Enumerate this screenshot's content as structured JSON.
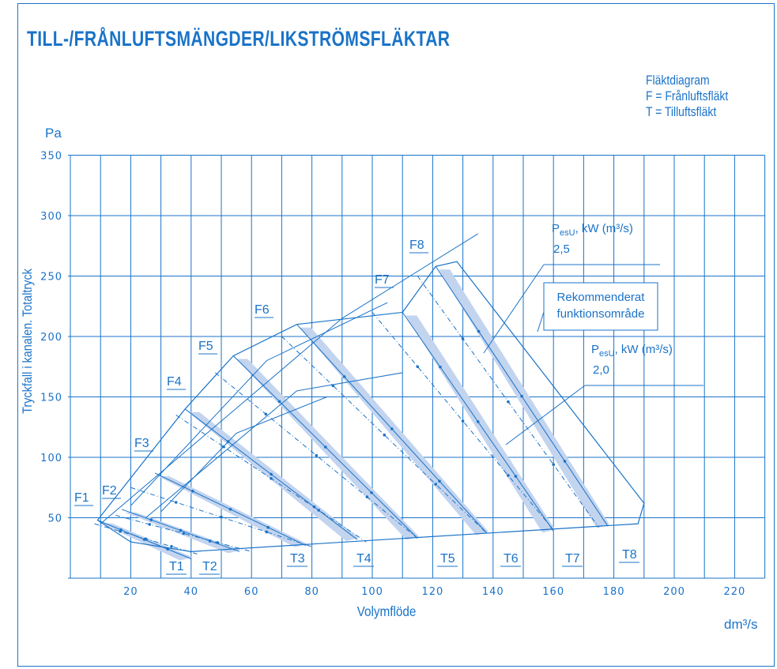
{
  "page": {
    "title": "TILL-/FRÅNLUFTSMÄNGDER/LIKSTRÖMSFLÄKTAR",
    "legend": [
      "Fläktdiagram",
      "F = Frånluftsfläkt",
      "T = Tilluftsfläkt"
    ]
  },
  "chart_data": {
    "type": "line",
    "title": "TILL-/FRÅNLUFTSMÄNGDER/LIKSTRÖMSFLÄKTAR",
    "xlabel": "Volymflöde",
    "xunit": "dm³/s",
    "ylabel": "Tryckfall i kanalen. Totaltryck",
    "yunit": "Pa",
    "xlim": [
      0,
      230
    ],
    "ylim": [
      0,
      350
    ],
    "x_ticks": [
      20,
      40,
      60,
      80,
      100,
      120,
      140,
      160,
      180,
      200,
      220
    ],
    "y_ticks": [
      50,
      100,
      150,
      200,
      250,
      300,
      350
    ],
    "grid": true,
    "colors": {
      "primary": "#1a73c8",
      "band": "#c3d4ef"
    },
    "series": [
      {
        "name": "F1",
        "values": [
          [
            9,
            48
          ],
          [
            40,
            16
          ]
        ]
      },
      {
        "name": "F2",
        "values": [
          [
            17,
            57
          ],
          [
            56,
            22
          ]
        ]
      },
      {
        "name": "F3",
        "values": [
          [
            28,
            87
          ],
          [
            78,
            27
          ]
        ]
      },
      {
        "name": "F4",
        "values": [
          [
            38,
            140
          ],
          [
            95,
            32
          ]
        ]
      },
      {
        "name": "F5",
        "values": [
          [
            54,
            184
          ],
          [
            115,
            33
          ]
        ]
      },
      {
        "name": "F6",
        "values": [
          [
            75,
            210
          ],
          [
            138,
            37
          ]
        ]
      },
      {
        "name": "F7",
        "values": [
          [
            110,
            220
          ],
          [
            160,
            39
          ]
        ]
      },
      {
        "name": "F8",
        "values": [
          [
            121,
            258
          ],
          [
            178,
            43
          ]
        ]
      },
      {
        "name": "T1",
        "values": [
          [
            8,
            45
          ],
          [
            42,
            20
          ]
        ]
      },
      {
        "name": "T2",
        "values": [
          [
            15,
            52
          ],
          [
            60,
            22
          ]
        ]
      },
      {
        "name": "T3",
        "values": [
          [
            20,
            75
          ],
          [
            80,
            26
          ]
        ]
      },
      {
        "name": "T4",
        "values": [
          [
            35,
            135
          ],
          [
            98,
            30
          ]
        ]
      },
      {
        "name": "T5",
        "values": [
          [
            48,
            170
          ],
          [
            115,
            33
          ]
        ]
      },
      {
        "name": "T6",
        "values": [
          [
            70,
            200
          ],
          [
            138,
            37
          ]
        ]
      },
      {
        "name": "T7",
        "values": [
          [
            100,
            220
          ],
          [
            160,
            40
          ]
        ]
      },
      {
        "name": "T8",
        "values": [
          [
            115,
            250
          ],
          [
            175,
            42
          ]
        ]
      }
    ],
    "annotations": [
      {
        "text": "PesU, kW (m³/s)",
        "sub": "2,5"
      },
      {
        "text": "PesU, kW (m³/s)",
        "sub": "2,0"
      },
      {
        "text": "Rekommenderat funktionsområde"
      }
    ]
  }
}
